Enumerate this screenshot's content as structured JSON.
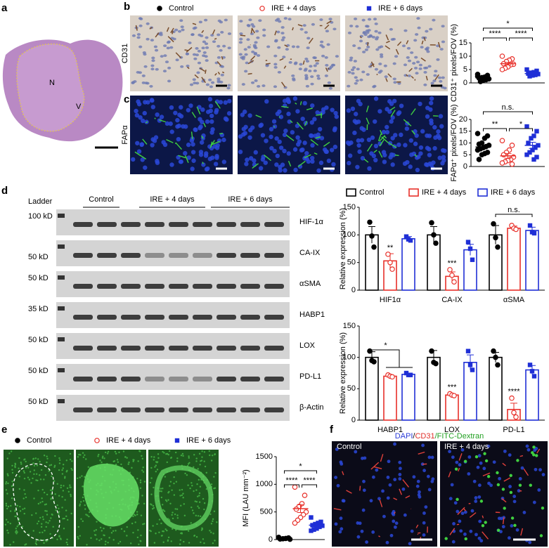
{
  "panels": [
    "a",
    "b",
    "c",
    "d",
    "e",
    "f"
  ],
  "tissue_labels": [
    "N",
    "V"
  ],
  "image_rows": [
    "CD31",
    "FAPα"
  ],
  "blot": {
    "ladder": "Ladder",
    "groups": [
      "Control",
      "IRE + 4 days",
      "IRE + 6 days"
    ],
    "sizes": [
      "100 kD",
      "50 kD",
      "50 kD",
      "35 kD",
      "50 kD",
      "50 kD",
      "50 kD"
    ],
    "proteins": [
      "HIF-1α",
      "CA-IX",
      "αSMA",
      "HABP1",
      "LOX",
      "PD-L1",
      "β-Actin"
    ]
  },
  "f": {
    "title": [
      "DAPI",
      "/",
      "CD31",
      "/FITC-Dextran"
    ],
    "images": [
      "Control",
      "IRE + 4 days"
    ]
  },
  "chart_data": [
    {
      "type": "dot",
      "ylabel": "CD31⁺ pixels/FOV (%)",
      "ylim": [
        0,
        15
      ],
      "yticks": [
        0,
        5,
        10,
        15
      ],
      "annotations": [
        "*",
        "****",
        "****"
      ],
      "series": [
        {
          "name": "Control",
          "color": "#000000",
          "marker": "filled-circle",
          "values": [
            3.2,
            2.8,
            2.2,
            2,
            1.8,
            1.5,
            1.2,
            1,
            0.5,
            2.5
          ],
          "mean": 1.9,
          "error": 0.3
        },
        {
          "name": "IRE + 4 days",
          "color": "#e8302a",
          "marker": "open-circle",
          "values": [
            10,
            9,
            8.5,
            8,
            7.2,
            7,
            6.8,
            6,
            5.5,
            5
          ],
          "mean": 7.2,
          "error": 0.5
        },
        {
          "name": "IRE + 6 days",
          "color": "#1f2fd6",
          "marker": "square",
          "values": [
            5,
            4.5,
            4,
            3.8,
            3.5,
            3.3,
            3,
            2.8,
            2.5
          ],
          "mean": 3.5,
          "error": 0.3
        }
      ]
    },
    {
      "type": "dot",
      "ylabel": "FAPα⁺ pixels/FOV (%)",
      "ylim": [
        0,
        20
      ],
      "yticks": [
        0,
        5,
        10,
        15,
        20
      ],
      "annotations": [
        "n.s.",
        "**",
        "*"
      ],
      "series": [
        {
          "color": "#000000",
          "marker": "filled-circle",
          "values": [
            14,
            13,
            12,
            10,
            9.5,
            9,
            8.5,
            8,
            7.5,
            7,
            6,
            5.5,
            5,
            3
          ],
          "mean": 8.3,
          "error": 0.8
        },
        {
          "color": "#e8302a",
          "marker": "open-circle",
          "values": [
            11,
            9,
            7,
            6,
            5,
            4,
            3,
            2.5,
            2,
            1.5,
            1
          ],
          "mean": 4.5,
          "error": 1
        },
        {
          "color": "#1f2fd6",
          "marker": "square",
          "values": [
            17,
            15,
            13,
            12,
            10,
            9,
            8,
            7,
            6,
            5,
            4,
            3
          ],
          "mean": 9,
          "error": 1.3
        }
      ]
    },
    {
      "type": "bar",
      "ylabel": "Relative expression (%)",
      "ylim": [
        0,
        150
      ],
      "yticks": [
        0,
        50,
        100,
        150
      ],
      "categories": [
        "HIF1α",
        "CA-IX",
        "αSMA"
      ],
      "annotations": [
        "**",
        "***",
        "n.s."
      ],
      "series": [
        {
          "name": "Control",
          "color": "#000000",
          "marker": "filled-circle",
          "values": [
            100,
            100,
            100
          ],
          "errors": [
            15,
            15,
            17
          ],
          "points": [
            [
              123,
              98,
              78
            ],
            [
              122,
              100,
              85
            ],
            [
              120,
              95,
              78
            ]
          ]
        },
        {
          "name": "IRE + 4 days",
          "color": "#e8302a",
          "marker": "open-circle",
          "values": [
            53,
            25,
            112
          ],
          "errors": [
            13,
            8,
            4
          ],
          "points": [
            [
              65,
              50,
              38
            ],
            [
              37,
              27,
              15
            ],
            [
              117,
              112,
              110
            ]
          ]
        },
        {
          "name": "IRE + 6 days",
          "color": "#1f2fd6",
          "marker": "square",
          "values": [
            93,
            73,
            108
          ],
          "errors": [
            4,
            10,
            6
          ],
          "points": [
            [
              97,
              92,
              90
            ],
            [
              87,
              75,
              55
            ],
            [
              117,
              105,
              103
            ]
          ]
        }
      ]
    },
    {
      "type": "bar",
      "ylabel": "Relative expression (%)",
      "ylim": [
        0,
        150
      ],
      "yticks": [
        0,
        50,
        100,
        150
      ],
      "categories": [
        "HABP1",
        "LOX",
        "PD-L1"
      ],
      "annotations": [
        "*",
        "***",
        "****"
      ],
      "series": [
        {
          "color": "#000000",
          "marker": "filled-circle",
          "values": [
            100,
            100,
            100
          ],
          "errors": [
            9,
            11,
            8
          ],
          "points": [
            [
              110,
              95,
              93
            ],
            [
              110,
              92,
              90
            ],
            [
              110,
              100,
              88
            ]
          ]
        },
        {
          "color": "#e8302a",
          "marker": "open-circle",
          "values": [
            70,
            40,
            17
          ],
          "errors": [
            2,
            2,
            10
          ],
          "points": [
            [
              72,
              70,
              69
            ],
            [
              42,
              40,
              39
            ],
            [
              35,
              12,
              5
            ]
          ]
        },
        {
          "color": "#1f2fd6",
          "marker": "square",
          "values": [
            73,
            92,
            80
          ],
          "errors": [
            2,
            12,
            7
          ],
          "points": [
            [
              75,
              72,
              72
            ],
            [
              110,
              88,
              80
            ],
            [
              88,
              78,
              70
            ]
          ]
        }
      ]
    },
    {
      "type": "dot",
      "ylabel": "MFI (LAU mm⁻²)",
      "ylim": [
        0,
        1500
      ],
      "yticks": [
        0,
        500,
        1000,
        1500
      ],
      "annotations": [
        "*",
        "****",
        "****"
      ],
      "series": [
        {
          "name": "Control",
          "color": "#000000",
          "marker": "filled-circle",
          "values": [
            40,
            30,
            20,
            15,
            10,
            5
          ],
          "mean": 20,
          "error": 5
        },
        {
          "name": "IRE + 4 days",
          "color": "#e8302a",
          "marker": "open-circle",
          "values": [
            950,
            800,
            650,
            600,
            550,
            500,
            450,
            400,
            350,
            300
          ],
          "mean": 560,
          "error": 70
        },
        {
          "name": "IRE + 6 days",
          "color": "#1f2fd6",
          "marker": "square",
          "values": [
            400,
            320,
            300,
            280,
            260,
            250,
            230,
            200,
            180,
            160
          ],
          "mean": 260,
          "error": 25
        }
      ]
    }
  ]
}
